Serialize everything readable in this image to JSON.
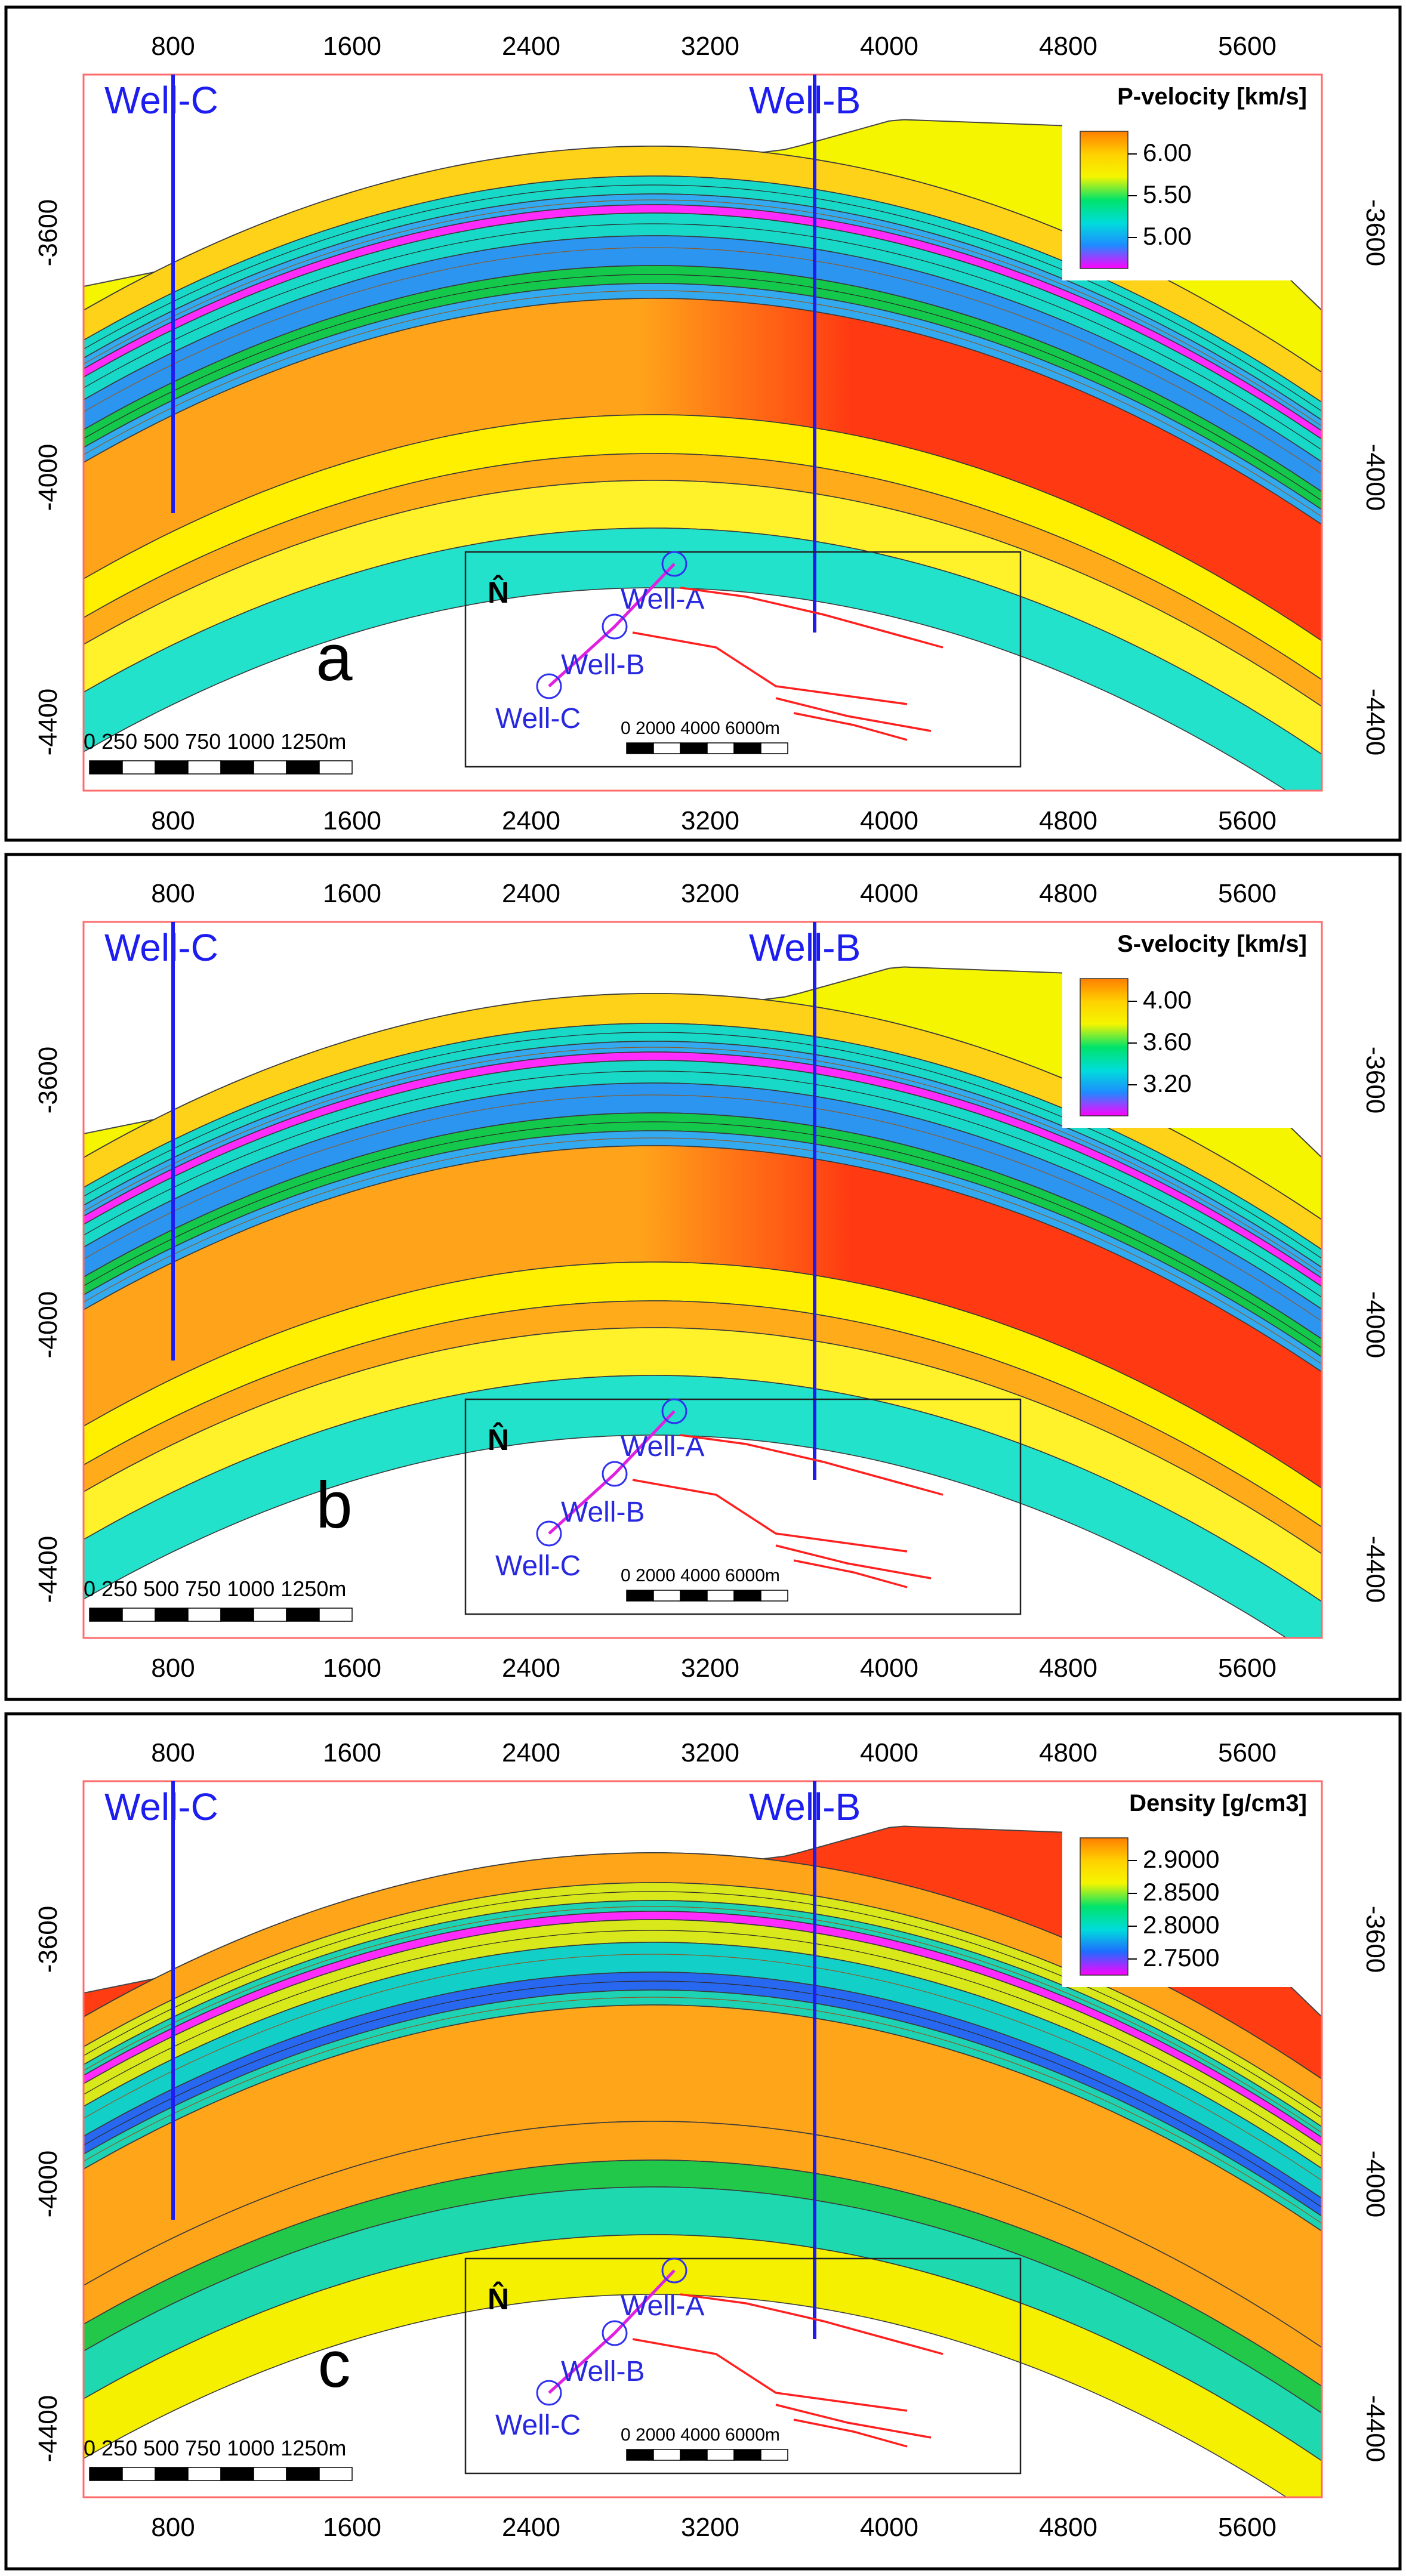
{
  "panels": [
    {
      "id": "a",
      "letter": "a",
      "legend": {
        "title": "P-velocity [km/s]",
        "ticks": [
          "6.00",
          "5.50",
          "5.00"
        ],
        "stops": [
          "#ff7f00",
          "#ffd200",
          "#f5f500",
          "#00e36a",
          "#00dcdc",
          "#1e8cff",
          "#ff00ff"
        ]
      },
      "x_ticks_top": [
        "800",
        "1600",
        "2400",
        "3200",
        "4000",
        "4800",
        "5600"
      ],
      "x_ticks_bottom": [
        "800",
        "1600",
        "2400",
        "3200",
        "4000",
        "4800",
        "5600"
      ],
      "y_ticks_left": [
        "-3600",
        "-4000",
        "-4400"
      ],
      "y_ticks_right": [
        "-3600",
        "-4000",
        "-4400"
      ],
      "wells": [
        "Well-C",
        "Well-B"
      ],
      "inset": {
        "north": "N̂",
        "wells": [
          "Well-A",
          "Well-B",
          "Well-C"
        ],
        "scale_left": "0   250  500  750 1000 1250m",
        "scale_right": "0   2000  4000  6000m"
      },
      "colors": {
        "top_cap": "#f5f500",
        "upper_band": "#ffd21a",
        "thin_a": "#18d9c8",
        "thin_b": "#33aaf0",
        "magenta_layer": "#ff2bff",
        "mid_blue": "#2c95f0",
        "green_layer": "#13c84a",
        "reservoir": "#ffa31a",
        "reservoir_hot": "#ff3a12",
        "below_reservoir": "#fff000",
        "orange_band": "#ffab1a",
        "lower_yellow": "#fff22a",
        "base": "#22e2cc"
      }
    },
    {
      "id": "b",
      "letter": "b",
      "legend": {
        "title": "S-velocity [km/s]",
        "ticks": [
          "4.00",
          "3.60",
          "3.20"
        ],
        "stops": [
          "#ff7f00",
          "#ffd200",
          "#f5f500",
          "#00e36a",
          "#00dcdc",
          "#1e8cff",
          "#ff00ff"
        ]
      },
      "x_ticks_top": [
        "800",
        "1600",
        "2400",
        "3200",
        "4000",
        "4800",
        "5600"
      ],
      "x_ticks_bottom": [
        "800",
        "1600",
        "2400",
        "3200",
        "4000",
        "4800",
        "5600"
      ],
      "y_ticks_left": [
        "-3600",
        "-4000",
        "-4400"
      ],
      "y_ticks_right": [
        "-3600",
        "-4000",
        "-4400"
      ],
      "wells": [
        "Well-C",
        "Well-B"
      ],
      "inset": {
        "north": "N̂",
        "wells": [
          "Well-A",
          "Well-B",
          "Well-C"
        ],
        "scale_left": "0   250  500  750 1000 1250m",
        "scale_right": "0   2000  4000  6000m"
      },
      "colors": {
        "top_cap": "#f5f500",
        "upper_band": "#ffd21a",
        "thin_a": "#18d9c8",
        "thin_b": "#33aaf0",
        "magenta_layer": "#ff2bff",
        "mid_blue": "#2c95f0",
        "green_layer": "#13c84a",
        "reservoir": "#ffa31a",
        "reservoir_hot": "#ff3a12",
        "below_reservoir": "#fff000",
        "orange_band": "#ffab1a",
        "lower_yellow": "#fff22a",
        "base": "#22e2cc"
      }
    },
    {
      "id": "c",
      "letter": "c",
      "legend": {
        "title": "Density [g/cm3]",
        "ticks": [
          "2.9000",
          "2.8500",
          "2.8000",
          "2.7500"
        ],
        "stops": [
          "#ff7f00",
          "#ffd200",
          "#f5f500",
          "#00e36a",
          "#00dcdc",
          "#1e6cff",
          "#ff00ff"
        ]
      },
      "x_ticks_top": [
        "800",
        "1600",
        "2400",
        "3200",
        "4000",
        "4800",
        "5600"
      ],
      "x_ticks_bottom": [
        "800",
        "1600",
        "2400",
        "3200",
        "4000",
        "4800",
        "5600"
      ],
      "y_ticks_left": [
        "-3600",
        "-4000",
        "-4400"
      ],
      "y_ticks_right": [
        "-3600",
        "-4000",
        "-4400"
      ],
      "wells": [
        "Well-C",
        "Well-B"
      ],
      "inset": {
        "north": "N̂",
        "wells": [
          "Well-A",
          "Well-B",
          "Well-C"
        ],
        "scale_left": "0   250  500  750 1000 1250m",
        "scale_right": "0   2000  4000  6000m"
      },
      "colors": {
        "top_cap": "#ff3c12",
        "upper_band": "#ffa51a",
        "thin_a": "#d8e81a",
        "thin_b": "#1ed2b4",
        "magenta_layer": "#ff2bff",
        "mid_blue": "#12d0c8",
        "green_layer": "#2868f0",
        "reservoir": "#ffa51a",
        "reservoir_hot": "#ffa51a",
        "below_reservoir": "#ffa51a",
        "orange_band": "#22c84a",
        "lower_yellow": "#1ed8b0",
        "base": "#f5f000"
      }
    }
  ]
}
